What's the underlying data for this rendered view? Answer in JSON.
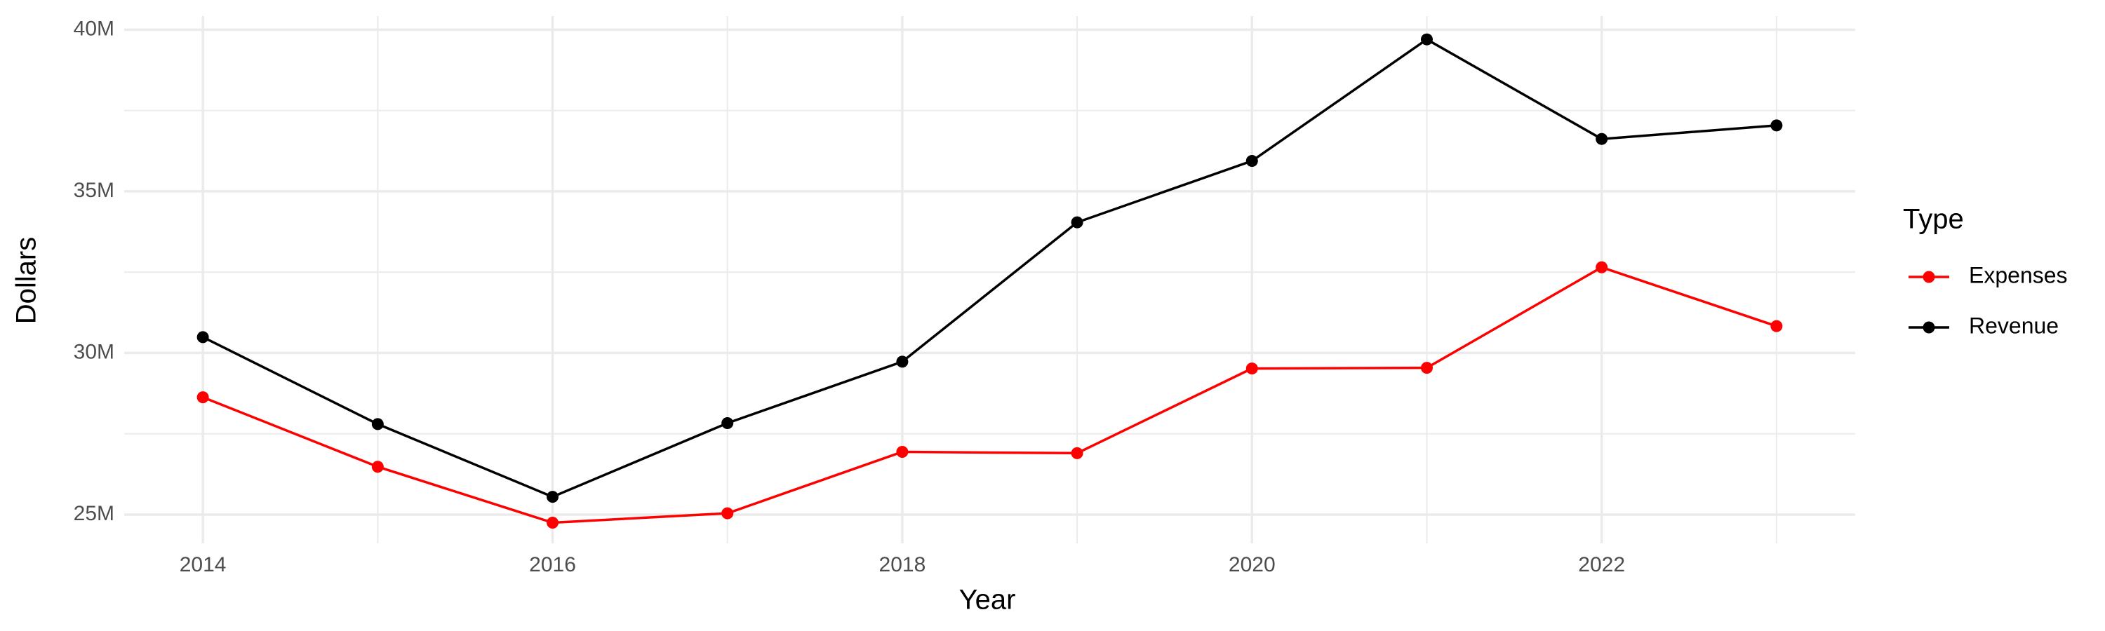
{
  "chart_data": {
    "type": "line",
    "x_label": "Year",
    "y_label": "Dollars",
    "legend_title": "Type",
    "x": [
      2014,
      2015,
      2016,
      2017,
      2018,
      2019,
      2020,
      2021,
      2022,
      2023
    ],
    "series": [
      {
        "name": "Expenses",
        "color": "#ff0000",
        "values": [
          28630000,
          26480000,
          24750000,
          25040000,
          26940000,
          26900000,
          29520000,
          29540000,
          32650000,
          30830000
        ]
      },
      {
        "name": "Revenue",
        "color": "#000000",
        "values": [
          30490000,
          27800000,
          25550000,
          27830000,
          29730000,
          34040000,
          35940000,
          39700000,
          36620000,
          37040000
        ]
      }
    ],
    "xlim": [
      2013.55,
      2023.45
    ],
    "xticks": [
      2014,
      2016,
      2018,
      2020,
      2022
    ],
    "ylim": [
      24110000,
      40420000
    ],
    "yticks": [
      {
        "value": 25000000,
        "label": "25M"
      },
      {
        "value": 30000000,
        "label": "30M"
      },
      {
        "value": 35000000,
        "label": "35M"
      },
      {
        "value": 40000000,
        "label": "40M"
      }
    ],
    "grid": true,
    "legend": "right"
  }
}
